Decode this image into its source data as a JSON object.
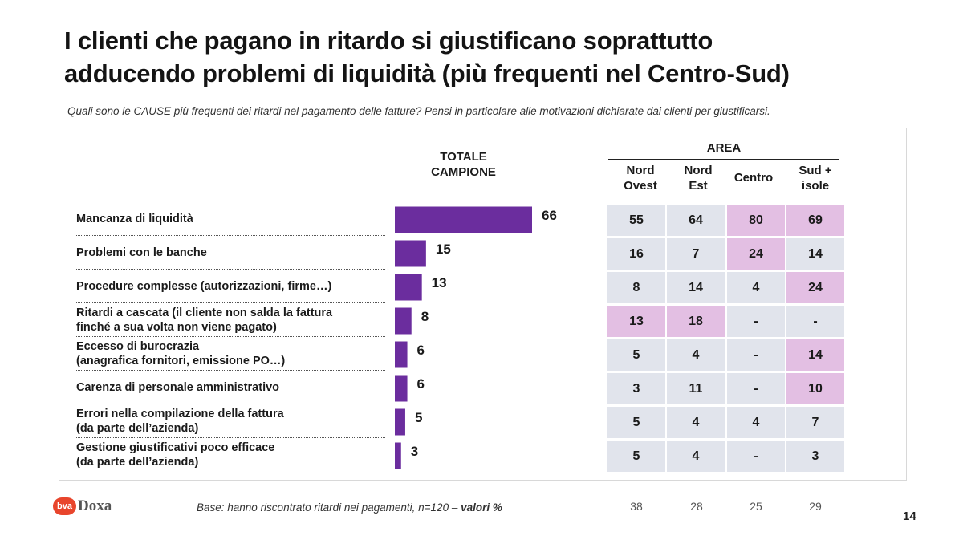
{
  "title_lines": [
    "I clienti che pagano in ritardo si giustificano soprattutto",
    "adducendo problemi di liquidità (più frequenti nel Centro-Sud)"
  ],
  "question": "Quali sono le CAUSE più frequenti dei ritardi nel pagamento delle fatture? Pensi in particolare alle motivazioni dichiarate dai clienti per giustificarsi.",
  "total_header": [
    "TOTALE",
    "CAMPIONE"
  ],
  "area_header": "AREA",
  "area_columns": [
    [
      "Nord",
      "Ovest"
    ],
    [
      "Nord",
      "Est"
    ],
    [
      "Centro"
    ],
    [
      "Sud +",
      "isole"
    ]
  ],
  "rows": [
    {
      "label": [
        "Mancanza di liquidità"
      ],
      "total": 66,
      "area": [
        "55",
        "64",
        "80",
        "69"
      ],
      "highlight": [
        false,
        false,
        true,
        true
      ]
    },
    {
      "label": [
        "Problemi con le banche"
      ],
      "total": 15,
      "area": [
        "16",
        "7",
        "24",
        "14"
      ],
      "highlight": [
        false,
        false,
        true,
        false
      ]
    },
    {
      "label": [
        "Procedure complesse (autorizzazioni, firme…)"
      ],
      "total": 13,
      "area": [
        "8",
        "14",
        "4",
        "24"
      ],
      "highlight": [
        false,
        false,
        false,
        true
      ]
    },
    {
      "label": [
        "Ritardi a cascata (il cliente non salda la fattura",
        "finché a sua volta non viene pagato)"
      ],
      "total": 8,
      "area": [
        "13",
        "18",
        "-",
        "-"
      ],
      "highlight": [
        true,
        true,
        false,
        false
      ]
    },
    {
      "label": [
        "Eccesso di burocrazia",
        "(anagrafica fornitori, emissione PO…)"
      ],
      "total": 6,
      "area": [
        "5",
        "4",
        "-",
        "14"
      ],
      "highlight": [
        false,
        false,
        false,
        true
      ]
    },
    {
      "label": [
        "Carenza di personale amministrativo"
      ],
      "total": 6,
      "area": [
        "3",
        "11",
        "-",
        "10"
      ],
      "highlight": [
        false,
        false,
        false,
        true
      ]
    },
    {
      "label": [
        "Errori nella compilazione della fattura",
        "(da parte dell’azienda)"
      ],
      "total": 5,
      "area": [
        "5",
        "4",
        "4",
        "7"
      ],
      "highlight": [
        false,
        false,
        false,
        false
      ]
    },
    {
      "label": [
        "Gestione giustificativi poco efficace",
        "(da parte dell’azienda)"
      ],
      "total": 3,
      "area": [
        "5",
        "4",
        "-",
        "3"
      ],
      "highlight": [
        false,
        false,
        false,
        false
      ]
    }
  ],
  "bases": [
    "38",
    "28",
    "25",
    "29"
  ],
  "footnote": {
    "text": "Base: hanno riscontrato ritardi nei pagamenti, n=120 – ",
    "bold": "valori %"
  },
  "logo": {
    "badge": "bva",
    "word": "Doxa"
  },
  "page_number": "14",
  "colors": {
    "bar": "#6b2d9e",
    "highlight_cell": "#e3bfe3",
    "normal_cell": "#e1e4ec"
  },
  "chart_data": {
    "type": "bar",
    "orientation": "horizontal",
    "title": "TOTALE CAMPIONE",
    "categories": [
      "Mancanza di liquidità",
      "Problemi con le banche",
      "Procedure complesse (autorizzazioni, firme…)",
      "Ritardi a cascata (il cliente non salda la fattura finché a sua volta non viene pagato)",
      "Eccesso di burocrazia (anagrafica fornitori, emissione PO…)",
      "Carenza di personale amministrativo",
      "Errori nella compilazione della fattura (da parte dell’azienda)",
      "Gestione giustificativi poco efficace (da parte dell’azienda)"
    ],
    "values": [
      66,
      15,
      13,
      8,
      6,
      6,
      5,
      3
    ],
    "xlim": [
      0,
      66
    ],
    "unit": "%",
    "grid": false
  }
}
